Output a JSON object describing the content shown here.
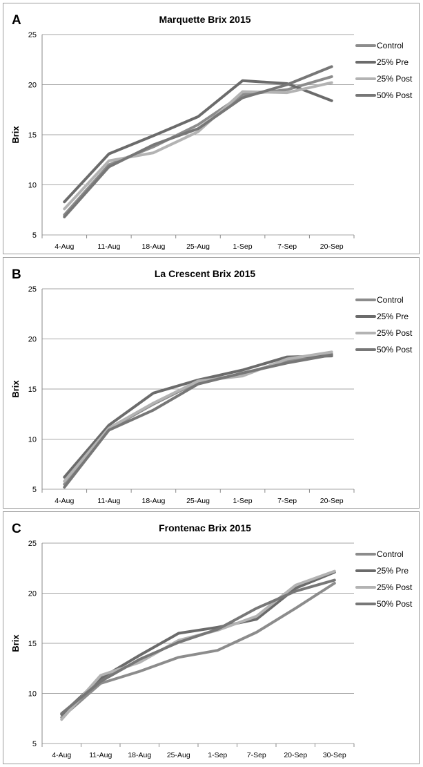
{
  "chart_data": [
    {
      "type": "line",
      "panel_letter": "A",
      "title": "Marquette Brix 2015",
      "xlabel": "",
      "ylabel": "Brix",
      "ylim": [
        5,
        25
      ],
      "yticks": [
        5,
        10,
        15,
        20,
        25
      ],
      "categories": [
        "4-Aug",
        "11-Aug",
        "18-Aug",
        "25-Aug",
        "1-Sep",
        "7-Sep",
        "20-Sep"
      ],
      "grid": true,
      "legend": "right",
      "series": [
        {
          "name": "Control",
          "color": "#8c8c8c",
          "values": [
            7.0,
            12.0,
            13.8,
            16.0,
            19.0,
            19.5,
            20.8
          ]
        },
        {
          "name": "25% Pre",
          "color": "#6b6b6b",
          "values": [
            8.3,
            13.1,
            14.9,
            16.8,
            20.4,
            20.1,
            18.4
          ]
        },
        {
          "name": "25% Post",
          "color": "#b3b3b3",
          "values": [
            7.6,
            12.4,
            13.2,
            15.3,
            19.3,
            19.2,
            20.2
          ]
        },
        {
          "name": "50% Post",
          "color": "#777777",
          "values": [
            6.8,
            11.8,
            14.0,
            15.6,
            18.7,
            20.0,
            21.8
          ]
        }
      ]
    },
    {
      "type": "line",
      "panel_letter": "B",
      "title": "La Crescent Brix 2015",
      "xlabel": "",
      "ylabel": "Brix",
      "ylim": [
        5,
        25
      ],
      "yticks": [
        5,
        10,
        15,
        20,
        25
      ],
      "categories": [
        "4-Aug",
        "11-Aug",
        "18-Aug",
        "25-Aug",
        "1-Sep",
        "7-Sep",
        "20-Sep"
      ],
      "grid": true,
      "legend": "right",
      "series": [
        {
          "name": "Control",
          "color": "#8c8c8c",
          "values": [
            5.5,
            11.0,
            13.5,
            15.7,
            16.5,
            17.8,
            18.5
          ]
        },
        {
          "name": "25% Pre",
          "color": "#6b6b6b",
          "values": [
            6.2,
            11.4,
            14.6,
            15.9,
            16.9,
            18.2,
            18.3
          ]
        },
        {
          "name": "25% Post",
          "color": "#b3b3b3",
          "values": [
            5.8,
            11.1,
            13.6,
            15.8,
            16.3,
            18.0,
            18.7
          ]
        },
        {
          "name": "50% Post",
          "color": "#777777",
          "values": [
            5.2,
            10.9,
            12.9,
            15.5,
            16.6,
            17.6,
            18.4
          ]
        }
      ]
    },
    {
      "type": "line",
      "panel_letter": "C",
      "title": "Frontenac Brix 2015",
      "xlabel": "",
      "ylabel": "Brix",
      "ylim": [
        5,
        25
      ],
      "yticks": [
        5,
        10,
        15,
        20,
        25
      ],
      "categories": [
        "4-Aug",
        "11-Aug",
        "18-Aug",
        "25-Aug",
        "1-Sep",
        "7-Sep",
        "20-Sep",
        "30-Sep"
      ],
      "grid": true,
      "legend": "right",
      "series": [
        {
          "name": "Control",
          "color": "#8c8c8c",
          "values": [
            7.6,
            11.0,
            12.2,
            13.6,
            14.3,
            16.1,
            18.5,
            21.0
          ]
        },
        {
          "name": "25% Pre",
          "color": "#6b6b6b",
          "values": [
            7.9,
            11.5,
            13.8,
            16.0,
            16.6,
            17.4,
            20.5,
            22.1
          ]
        },
        {
          "name": "25% Post",
          "color": "#b3b3b3",
          "values": [
            7.4,
            11.8,
            13.1,
            15.3,
            16.3,
            17.7,
            20.8,
            22.2
          ]
        },
        {
          "name": "50% Post",
          "color": "#777777",
          "values": [
            8.0,
            11.2,
            13.4,
            15.1,
            16.4,
            18.5,
            20.2,
            21.3
          ]
        }
      ]
    }
  ]
}
